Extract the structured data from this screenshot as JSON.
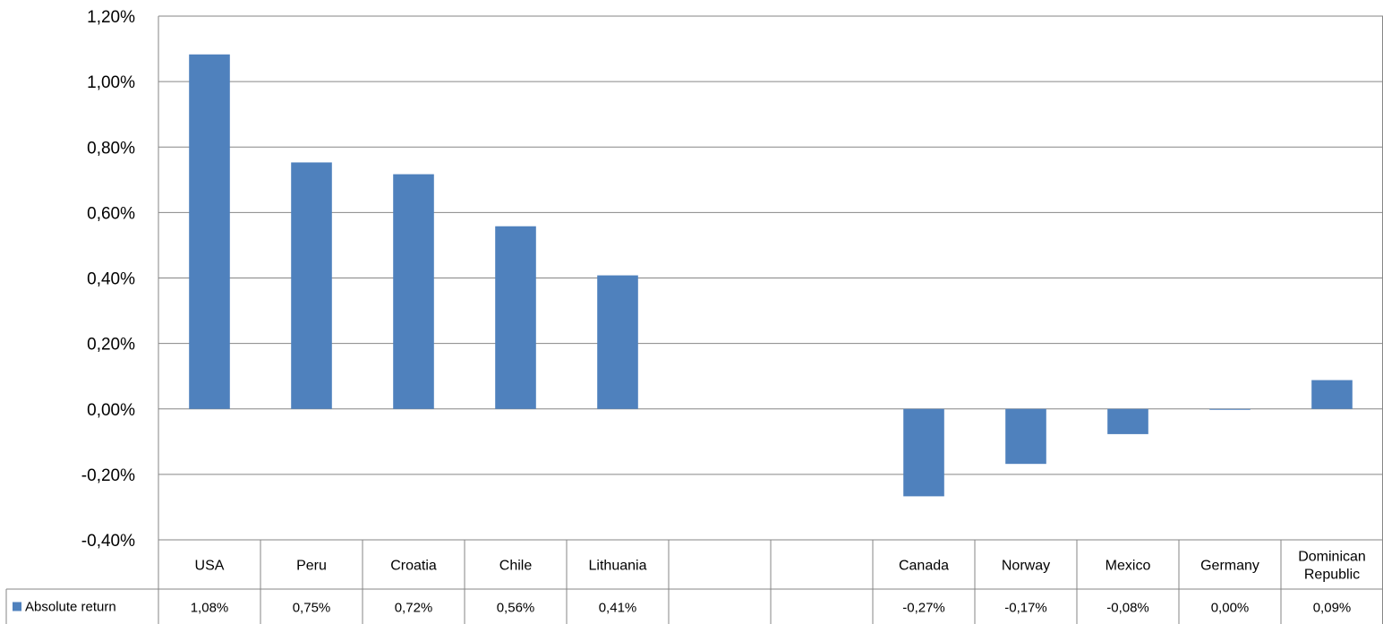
{
  "chart_data": {
    "type": "bar",
    "categories": [
      [
        "USA"
      ],
      [
        "Peru"
      ],
      [
        "Croatia"
      ],
      [
        "Chile"
      ],
      [
        "Lithuania"
      ],
      [
        ""
      ],
      [
        ""
      ],
      [
        "Canada"
      ],
      [
        "Norway"
      ],
      [
        "Mexico"
      ],
      [
        "Germany"
      ],
      [
        "Dominican",
        "Republic"
      ]
    ],
    "series": [
      {
        "name": "Absolute return",
        "color": "#4F81BD",
        "values": [
          1.083,
          0.753,
          0.717,
          0.558,
          0.408,
          null,
          null,
          -0.267,
          -0.168,
          -0.077,
          -0.002,
          0.088
        ],
        "value_labels": [
          "1,08%",
          "0,75%",
          "0,72%",
          "0,56%",
          "0,41%",
          "",
          "",
          "-0,27%",
          "-0,17%",
          "-0,08%",
          "0,00%",
          "0,09%"
        ]
      }
    ],
    "ylim": [
      -0.4,
      1.2
    ],
    "yticks": [
      1.2,
      1.0,
      0.8,
      0.6,
      0.4,
      0.2,
      0.0,
      -0.2,
      -0.4
    ],
    "ytick_labels": [
      "1,20%",
      "1,00%",
      "0,80%",
      "0,60%",
      "0,40%",
      "0,20%",
      "0,00%",
      "-0,20%",
      "-0,40%"
    ],
    "grid": true,
    "data_table": true,
    "legend": "data-table-left",
    "title": "",
    "xlabel": "",
    "ylabel": ""
  }
}
